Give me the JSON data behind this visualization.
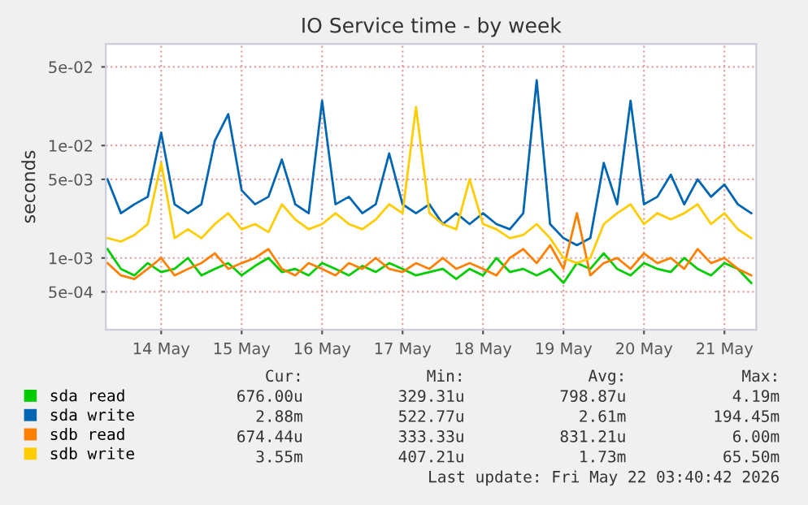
{
  "chart_data": {
    "type": "line",
    "title": "IO Service time - by week",
    "ylabel": "seconds",
    "x": [
      "2026-05-13T08:00",
      "2026-05-13T12:00",
      "2026-05-13T16:00",
      "2026-05-13T20:00",
      "2026-05-14T00:00",
      "2026-05-14T04:00",
      "2026-05-14T08:00",
      "2026-05-14T12:00",
      "2026-05-14T16:00",
      "2026-05-14T20:00",
      "2026-05-15T00:00",
      "2026-05-15T04:00",
      "2026-05-15T08:00",
      "2026-05-15T12:00",
      "2026-05-15T16:00",
      "2026-05-15T20:00",
      "2026-05-16T00:00",
      "2026-05-16T04:00",
      "2026-05-16T08:00",
      "2026-05-16T12:00",
      "2026-05-16T16:00",
      "2026-05-16T20:00",
      "2026-05-17T00:00",
      "2026-05-17T04:00",
      "2026-05-17T08:00",
      "2026-05-17T12:00",
      "2026-05-17T16:00",
      "2026-05-17T20:00",
      "2026-05-18T00:00",
      "2026-05-18T04:00",
      "2026-05-18T08:00",
      "2026-05-18T12:00",
      "2026-05-18T16:00",
      "2026-05-18T20:00",
      "2026-05-19T00:00",
      "2026-05-19T04:00",
      "2026-05-19T08:00",
      "2026-05-19T12:00",
      "2026-05-19T16:00",
      "2026-05-19T20:00",
      "2026-05-20T00:00",
      "2026-05-20T04:00",
      "2026-05-20T08:00",
      "2026-05-20T12:00",
      "2026-05-20T16:00",
      "2026-05-20T20:00",
      "2026-05-21T00:00",
      "2026-05-21T04:00",
      "2026-05-21T08:00"
    ],
    "series": [
      {
        "name": "sda read",
        "color": "#00cc00",
        "values": [
          0.0012,
          0.0008,
          0.0007,
          0.0009,
          0.00075,
          0.0008,
          0.001,
          0.0007,
          0.0008,
          0.0009,
          0.0007,
          0.00085,
          0.001,
          0.00075,
          0.0008,
          0.0007,
          0.0009,
          0.0008,
          0.0007,
          0.00085,
          0.00075,
          0.0009,
          0.0008,
          0.0007,
          0.00075,
          0.0008,
          0.00065,
          0.0008,
          0.0007,
          0.001,
          0.00075,
          0.0008,
          0.0007,
          0.0008,
          0.0006,
          0.0009,
          0.0008,
          0.0011,
          0.0008,
          0.0007,
          0.0009,
          0.0008,
          0.00075,
          0.001,
          0.0008,
          0.0007,
          0.0009,
          0.0008,
          0.0006
        ]
      },
      {
        "name": "sda write",
        "color": "#0066b3",
        "values": [
          0.005,
          0.0025,
          0.003,
          0.0035,
          0.013,
          0.003,
          0.0025,
          0.003,
          0.011,
          0.019,
          0.004,
          0.003,
          0.0035,
          0.0075,
          0.003,
          0.0025,
          0.025,
          0.003,
          0.0035,
          0.0025,
          0.003,
          0.0085,
          0.003,
          0.0025,
          0.003,
          0.002,
          0.0025,
          0.002,
          0.0025,
          0.002,
          0.0018,
          0.0025,
          0.038,
          0.002,
          0.0015,
          0.0013,
          0.0015,
          0.007,
          0.003,
          0.025,
          0.003,
          0.0035,
          0.0055,
          0.003,
          0.005,
          0.0035,
          0.0045,
          0.003,
          0.0025
        ]
      },
      {
        "name": "sdb read",
        "color": "#ff8000",
        "values": [
          0.0009,
          0.0007,
          0.00065,
          0.0008,
          0.001,
          0.0007,
          0.0008,
          0.0009,
          0.0011,
          0.0008,
          0.0009,
          0.001,
          0.0012,
          0.0008,
          0.0007,
          0.0009,
          0.0008,
          0.0007,
          0.0009,
          0.0008,
          0.001,
          0.0008,
          0.00075,
          0.0009,
          0.0008,
          0.001,
          0.0008,
          0.0009,
          0.0008,
          0.0007,
          0.001,
          0.0012,
          0.0009,
          0.0013,
          0.0008,
          0.0025,
          0.0007,
          0.0009,
          0.001,
          0.0008,
          0.0011,
          0.0009,
          0.001,
          0.0008,
          0.0012,
          0.0009,
          0.001,
          0.0008,
          0.0007
        ]
      },
      {
        "name": "sdb write",
        "color": "#ffcc00",
        "values": [
          0.0015,
          0.0014,
          0.0016,
          0.002,
          0.007,
          0.0015,
          0.0018,
          0.0015,
          0.002,
          0.0025,
          0.0018,
          0.002,
          0.0017,
          0.003,
          0.0022,
          0.0018,
          0.002,
          0.0025,
          0.002,
          0.0018,
          0.0022,
          0.003,
          0.0025,
          0.022,
          0.0025,
          0.002,
          0.0018,
          0.005,
          0.002,
          0.0018,
          0.0015,
          0.0016,
          0.002,
          0.0015,
          0.001,
          0.0009,
          0.001,
          0.002,
          0.0025,
          0.003,
          0.002,
          0.0025,
          0.0022,
          0.0025,
          0.003,
          0.002,
          0.0025,
          0.0018,
          0.0015
        ]
      }
    ],
    "log": "y",
    "ylim": [
      0.00023,
      0.08
    ],
    "yticks": [
      {
        "value": 0.0005,
        "label": "5e-04"
      },
      {
        "value": 0.001,
        "label": "1e-03"
      },
      {
        "value": 0.005,
        "label": "5e-03"
      },
      {
        "value": 0.01,
        "label": "1e-02"
      },
      {
        "value": 0.05,
        "label": "5e-02"
      }
    ],
    "xlim": [
      "2026-05-13T07:30",
      "2026-05-21T09:30"
    ],
    "xticks": [
      {
        "value": "2026-05-14",
        "label": "14 May"
      },
      {
        "value": "2026-05-15",
        "label": "15 May"
      },
      {
        "value": "2026-05-16",
        "label": "16 May"
      },
      {
        "value": "2026-05-17",
        "label": "17 May"
      },
      {
        "value": "2026-05-18",
        "label": "18 May"
      },
      {
        "value": "2026-05-19",
        "label": "19 May"
      },
      {
        "value": "2026-05-20",
        "label": "20 May"
      },
      {
        "value": "2026-05-21",
        "label": "21 May"
      }
    ],
    "grid": true,
    "legend": "bottom",
    "annotations": [
      "Cur:",
      "Min:",
      "Avg:",
      "Max:",
      "676.00u",
      "329.31u",
      "798.87u",
      "4.19m",
      "2.88m",
      "522.77u",
      "2.61m",
      "194.45m",
      "674.44u",
      "333.33u",
      "831.21u",
      "6.00m",
      "3.55m",
      "407.21u",
      "1.73m",
      "65.50m",
      "Last update: Fri May 22 03:40:42 2026"
    ]
  }
}
